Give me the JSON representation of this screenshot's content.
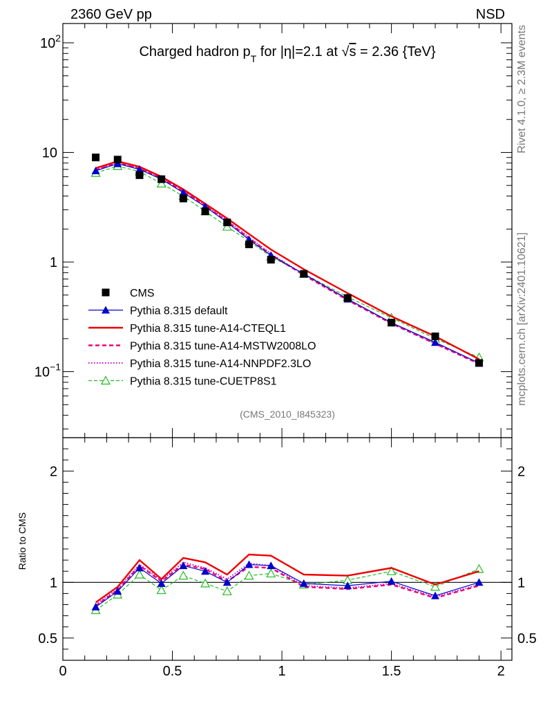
{
  "header": {
    "left": "2360 GeV pp",
    "right": "NSD",
    "title_main": "Charged hadron p",
    "title_sub": "T",
    "title_mid": " for |η|=2.1 at √",
    "title_s": "s",
    "title_end": " = 2.36 {TeV}",
    "ref_id": "(CMS_2010_I845323)",
    "side_rivet": "Rivet 4.1.0, ≥ 2.3M events",
    "side_mcplots": "mcplots.cern.ch [arXiv:2401.10621]",
    "ratio_ylabel": "Ratio to CMS"
  },
  "chart_data": {
    "type": "line",
    "x": [
      0.15,
      0.25,
      0.35,
      0.45,
      0.55,
      0.65,
      0.75,
      0.85,
      0.95,
      1.1,
      1.3,
      1.5,
      1.7,
      1.9
    ],
    "top": {
      "yscale": "log",
      "ylim": [
        0.025,
        150
      ],
      "yticks": [
        {
          "v": 0.1,
          "base": "10",
          "exp": "−1"
        },
        {
          "v": 1,
          "base": "1",
          "exp": ""
        },
        {
          "v": 10,
          "base": "10",
          "exp": ""
        },
        {
          "v": 100,
          "base": "10",
          "exp": "2"
        }
      ]
    },
    "ratio": {
      "ylim": [
        0.3,
        2.3
      ],
      "yticks": [
        0.5,
        1,
        2
      ],
      "ylabel": "Ratio to CMS"
    },
    "xlim": [
      0,
      2.05
    ],
    "xticks": [
      0,
      0.5,
      1,
      1.5,
      2
    ],
    "xticklabels": [
      "0",
      "0.5",
      "1",
      "1.5",
      "2"
    ],
    "series": [
      {
        "key": "cms",
        "name": "CMS",
        "color": "#000000",
        "style": "marker",
        "marker": "square",
        "values": [
          9.0,
          8.6,
          6.2,
          5.7,
          3.8,
          2.9,
          2.3,
          1.45,
          1.05,
          0.78,
          0.47,
          0.28,
          0.21,
          0.12
        ],
        "ratio": [
          1,
          1,
          1,
          1,
          1,
          1,
          1,
          1,
          1,
          1,
          1,
          1,
          1,
          1
        ]
      },
      {
        "key": "default",
        "name": "Pythia 8.315 default",
        "color": "#0000cc",
        "style": "solid-thin",
        "marker": "triangle",
        "values": [
          6.8,
          7.9,
          7.0,
          5.7,
          4.3,
          3.2,
          2.3,
          1.6,
          1.15,
          0.78,
          0.46,
          0.28,
          0.185,
          0.12
        ],
        "ratio": [
          0.78,
          0.92,
          1.13,
          0.99,
          1.15,
          1.1,
          1.0,
          1.16,
          1.15,
          0.99,
          0.97,
          1.01,
          0.88,
          1.0
        ]
      },
      {
        "key": "cteql1",
        "name": "Pythia 8.315 tune-A14-CTEQL1",
        "color": "#ee0000",
        "style": "solid-thick",
        "marker": "none",
        "values": [
          7.2,
          8.3,
          7.4,
          6.0,
          4.6,
          3.4,
          2.5,
          1.8,
          1.3,
          0.86,
          0.52,
          0.32,
          0.21,
          0.13
        ],
        "ratio": [
          0.82,
          0.96,
          1.2,
          1.03,
          1.22,
          1.18,
          1.07,
          1.25,
          1.24,
          1.07,
          1.06,
          1.13,
          0.98,
          1.1
        ]
      },
      {
        "key": "mstw",
        "name": "Pythia 8.315 tune-A14-MSTW2008LO",
        "color": "#ee0077",
        "style": "dashed-thick",
        "marker": "none",
        "values": [
          6.9,
          8.0,
          7.1,
          5.8,
          4.4,
          3.25,
          2.35,
          1.65,
          1.17,
          0.76,
          0.45,
          0.275,
          0.18,
          0.118
        ],
        "ratio": [
          0.79,
          0.93,
          1.15,
          1.01,
          1.16,
          1.12,
          1.01,
          1.14,
          1.13,
          0.96,
          0.94,
          0.98,
          0.86,
          0.97
        ]
      },
      {
        "key": "nnpdf",
        "name": "Pythia 8.315 tune-A14-NNPDF2.3LO",
        "color": "#cc00cc",
        "style": "dotted",
        "marker": "none",
        "values": [
          7.0,
          8.1,
          7.2,
          5.9,
          4.5,
          3.3,
          2.4,
          1.68,
          1.19,
          0.77,
          0.455,
          0.278,
          0.182,
          0.119
        ],
        "ratio": [
          0.8,
          0.94,
          1.16,
          1.02,
          1.18,
          1.13,
          1.03,
          1.17,
          1.15,
          0.97,
          0.95,
          0.99,
          0.87,
          0.98
        ]
      },
      {
        "key": "cuetp8s1",
        "name": "Pythia 8.315 tune-CUETP8S1",
        "color": "#22bb22",
        "style": "dashed-thin",
        "marker": "open-triangle",
        "values": [
          6.5,
          7.5,
          6.7,
          5.2,
          4.0,
          2.9,
          2.1,
          1.55,
          1.12,
          0.78,
          0.48,
          0.31,
          0.2,
          0.135
        ],
        "ratio": [
          0.75,
          0.89,
          1.07,
          0.93,
          1.06,
          0.99,
          0.92,
          1.06,
          1.08,
          0.98,
          1.02,
          1.1,
          0.96,
          1.12
        ]
      }
    ]
  }
}
